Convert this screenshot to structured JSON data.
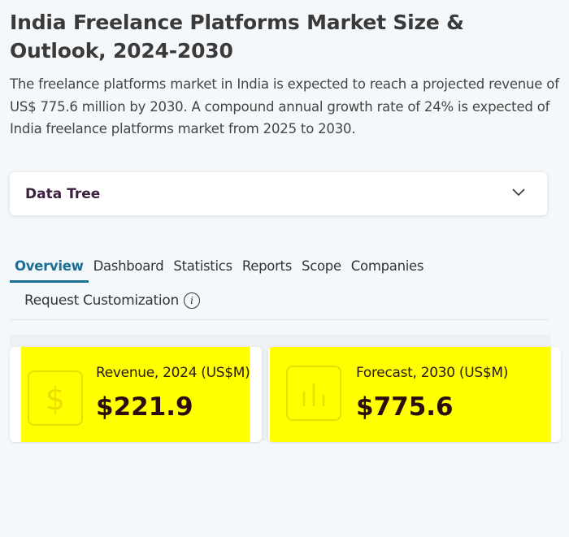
{
  "header": {
    "title": "India Freelance Platforms Market Size & Outlook, 2024-2030",
    "description": "The freelance platforms market in India is expected to reach a projected revenue of US$ 775.6 million by 2030. A compound annual growth rate of 24% is expected of India freelance platforms market from 2025 to 2030."
  },
  "data_tree": {
    "label": "Data Tree",
    "icon": "chevron-down-icon"
  },
  "tabs": [
    {
      "label": "Overview",
      "active": true
    },
    {
      "label": "Dashboard"
    },
    {
      "label": "Statistics"
    },
    {
      "label": "Reports"
    },
    {
      "label": "Scope"
    },
    {
      "label": "Companies"
    }
  ],
  "request": {
    "label": "Request Customization",
    "icon": "info-icon"
  },
  "kpis": [
    {
      "label": "Revenue, 2024 (US$M)",
      "value": "$221.9",
      "icon": "dollar-icon"
    },
    {
      "label": "Forecast, 2030 (US$M)",
      "value": "$775.6",
      "icon": "bar-chart-icon"
    }
  ],
  "colors": {
    "accent": "#1a6f95",
    "highlight": "#ffff00",
    "background": "#f5f8fb"
  }
}
